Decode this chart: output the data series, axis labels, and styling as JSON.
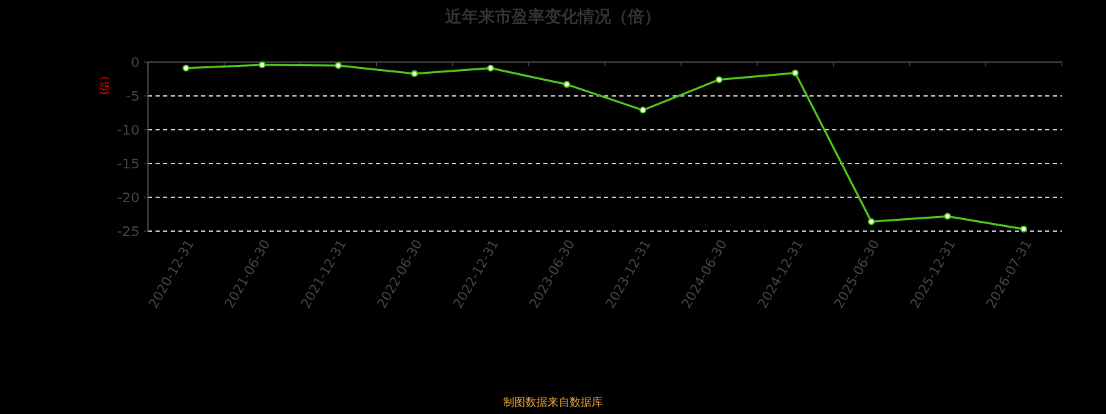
{
  "chart_data": {
    "type": "line",
    "title": "近年来市盈率变化情况（倍）",
    "ylabel": "(倍)",
    "categories": [
      "2020-12-31",
      "2021-06-30",
      "2021-12-31",
      "2022-06-30",
      "2022-12-31",
      "2023-06-30",
      "2023-12-31",
      "2024-06-30",
      "2024-12-31",
      "2025-06-30",
      "2025-12-31",
      "2026-07-31"
    ],
    "series": [
      {
        "color": "#4cc417",
        "values": [
          -0.9,
          -0.4,
          -0.5,
          -1.7,
          -0.9,
          -3.3,
          -7.1,
          -2.6,
          -1.6,
          -23.6,
          -22.8,
          -24.7
        ]
      }
    ],
    "ylim": [
      -25,
      0
    ],
    "yticks": [
      0,
      -5,
      -10,
      -15,
      -20,
      -25
    ],
    "grid": "y",
    "marker": "circle",
    "line_style": "solid",
    "annotations": [
      "制图数据来自数据库"
    ]
  }
}
